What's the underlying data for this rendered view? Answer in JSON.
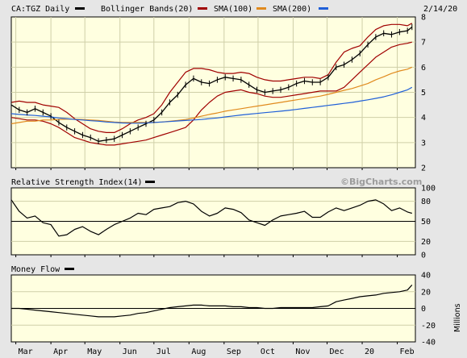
{
  "chart_data": [
    {
      "type": "line",
      "panel": "price",
      "title": "CA:TGZ Daily",
      "date_label": "2/14/20",
      "legend": [
        {
          "name": "",
          "color": "#000000"
        },
        {
          "name": "Bollinger Bands(20)",
          "color": "#a00000"
        },
        {
          "name": "SMA(100)",
          "color": "#e08a1e"
        },
        {
          "name": "SMA(200)",
          "color": "#1f5fd8"
        }
      ],
      "ylim": [
        2,
        8
      ],
      "yticks": [
        "2",
        "3",
        "4",
        "5",
        "6",
        "7",
        "8"
      ],
      "x_months": [
        "Mar",
        "Apr",
        "May",
        "Jun",
        "Jul",
        "Aug",
        "Sep",
        "Oct",
        "Nov",
        "Dec",
        "20",
        "Feb"
      ],
      "series": [
        {
          "name": "CA:TGZ",
          "color": "#000000",
          "x": [
            "2019-02-25",
            "2019-03-04",
            "2019-03-11",
            "2019-03-18",
            "2019-03-25",
            "2019-04-01",
            "2019-04-08",
            "2019-04-15",
            "2019-04-22",
            "2019-04-29",
            "2019-05-06",
            "2019-05-13",
            "2019-05-20",
            "2019-05-27",
            "2019-06-03",
            "2019-06-10",
            "2019-06-17",
            "2019-06-24",
            "2019-07-01",
            "2019-07-08",
            "2019-07-15",
            "2019-07-22",
            "2019-07-29",
            "2019-08-05",
            "2019-08-12",
            "2019-08-19",
            "2019-08-26",
            "2019-09-02",
            "2019-09-09",
            "2019-09-16",
            "2019-09-23",
            "2019-09-30",
            "2019-10-07",
            "2019-10-14",
            "2019-10-21",
            "2019-10-28",
            "2019-11-04",
            "2019-11-11",
            "2019-11-18",
            "2019-11-25",
            "2019-12-02",
            "2019-12-09",
            "2019-12-16",
            "2019-12-23",
            "2019-12-30",
            "2020-01-06",
            "2020-01-13",
            "2020-01-20",
            "2020-01-27",
            "2020-02-03",
            "2020-02-10",
            "2020-02-14"
          ],
          "values": [
            4.5,
            4.3,
            4.2,
            4.35,
            4.2,
            4.05,
            3.8,
            3.6,
            3.45,
            3.3,
            3.2,
            3.05,
            3.1,
            3.15,
            3.3,
            3.45,
            3.6,
            3.75,
            3.9,
            4.2,
            4.6,
            4.9,
            5.3,
            5.55,
            5.4,
            5.35,
            5.5,
            5.6,
            5.55,
            5.5,
            5.3,
            5.1,
            5.0,
            5.05,
            5.1,
            5.2,
            5.35,
            5.45,
            5.4,
            5.4,
            5.6,
            6.0,
            6.1,
            6.3,
            6.55,
            6.9,
            7.2,
            7.35,
            7.3,
            7.4,
            7.45,
            7.6
          ]
        },
        {
          "name": "Bollinger Upper",
          "color": "#a00000",
          "x": [
            "2019-02-25",
            "2019-03-04",
            "2019-03-11",
            "2019-03-18",
            "2019-03-25",
            "2019-04-01",
            "2019-04-08",
            "2019-04-15",
            "2019-04-22",
            "2019-04-29",
            "2019-05-06",
            "2019-05-13",
            "2019-05-20",
            "2019-05-27",
            "2019-06-03",
            "2019-06-10",
            "2019-06-17",
            "2019-06-24",
            "2019-07-01",
            "2019-07-08",
            "2019-07-15",
            "2019-07-22",
            "2019-07-29",
            "2019-08-05",
            "2019-08-12",
            "2019-08-19",
            "2019-08-26",
            "2019-09-02",
            "2019-09-09",
            "2019-09-16",
            "2019-09-23",
            "2019-09-30",
            "2019-10-07",
            "2019-10-14",
            "2019-10-21",
            "2019-10-28",
            "2019-11-04",
            "2019-11-11",
            "2019-11-18",
            "2019-11-25",
            "2019-12-02",
            "2019-12-09",
            "2019-12-16",
            "2019-12-23",
            "2019-12-30",
            "2020-01-06",
            "2020-01-13",
            "2020-01-20",
            "2020-01-27",
            "2020-02-03",
            "2020-02-10",
            "2020-02-14"
          ],
          "values": [
            4.6,
            4.65,
            4.6,
            4.6,
            4.5,
            4.45,
            4.4,
            4.2,
            3.95,
            3.75,
            3.55,
            3.45,
            3.4,
            3.4,
            3.55,
            3.75,
            3.9,
            4.0,
            4.15,
            4.5,
            5.0,
            5.4,
            5.8,
            5.95,
            5.95,
            5.9,
            5.8,
            5.75,
            5.75,
            5.8,
            5.75,
            5.6,
            5.5,
            5.45,
            5.45,
            5.5,
            5.55,
            5.6,
            5.6,
            5.55,
            5.7,
            6.2,
            6.6,
            6.75,
            6.85,
            7.2,
            7.5,
            7.65,
            7.7,
            7.7,
            7.65,
            7.75
          ]
        },
        {
          "name": "Bollinger Lower",
          "color": "#a00000",
          "x": [
            "2019-02-25",
            "2019-03-04",
            "2019-03-11",
            "2019-03-18",
            "2019-03-25",
            "2019-04-01",
            "2019-04-08",
            "2019-04-15",
            "2019-04-22",
            "2019-04-29",
            "2019-05-06",
            "2019-05-13",
            "2019-05-20",
            "2019-05-27",
            "2019-06-03",
            "2019-06-10",
            "2019-06-17",
            "2019-06-24",
            "2019-07-01",
            "2019-07-08",
            "2019-07-15",
            "2019-07-22",
            "2019-07-29",
            "2019-08-05",
            "2019-08-12",
            "2019-08-19",
            "2019-08-26",
            "2019-09-02",
            "2019-09-09",
            "2019-09-16",
            "2019-09-23",
            "2019-09-30",
            "2019-10-07",
            "2019-10-14",
            "2019-10-21",
            "2019-10-28",
            "2019-11-04",
            "2019-11-11",
            "2019-11-18",
            "2019-11-25",
            "2019-12-02",
            "2019-12-09",
            "2019-12-16",
            "2019-12-23",
            "2019-12-30",
            "2020-01-06",
            "2020-01-13",
            "2020-01-20",
            "2020-01-27",
            "2020-02-03",
            "2020-02-10",
            "2020-02-14"
          ],
          "values": [
            4.0,
            3.95,
            3.9,
            3.9,
            3.85,
            3.75,
            3.6,
            3.4,
            3.2,
            3.1,
            3.0,
            2.95,
            2.9,
            2.9,
            2.95,
            3.0,
            3.05,
            3.1,
            3.2,
            3.3,
            3.4,
            3.5,
            3.6,
            3.9,
            4.3,
            4.6,
            4.85,
            5.0,
            5.05,
            5.1,
            5.0,
            4.95,
            4.85,
            4.8,
            4.8,
            4.85,
            4.9,
            4.95,
            5.0,
            5.05,
            5.05,
            5.05,
            5.2,
            5.5,
            5.8,
            6.1,
            6.4,
            6.6,
            6.8,
            6.9,
            6.95,
            7.0
          ]
        },
        {
          "name": "SMA(100)",
          "color": "#e08a1e",
          "x": [
            "2019-02-25",
            "2019-03-04",
            "2019-03-11",
            "2019-03-18",
            "2019-03-25",
            "2019-04-01",
            "2019-04-08",
            "2019-04-15",
            "2019-04-22",
            "2019-04-29",
            "2019-05-06",
            "2019-05-13",
            "2019-05-20",
            "2019-05-27",
            "2019-06-03",
            "2019-06-10",
            "2019-06-17",
            "2019-06-24",
            "2019-07-01",
            "2019-07-08",
            "2019-07-15",
            "2019-07-22",
            "2019-07-29",
            "2019-08-05",
            "2019-08-12",
            "2019-08-19",
            "2019-08-26",
            "2019-09-02",
            "2019-09-09",
            "2019-09-16",
            "2019-09-23",
            "2019-09-30",
            "2019-10-07",
            "2019-10-14",
            "2019-10-21",
            "2019-10-28",
            "2019-11-04",
            "2019-11-11",
            "2019-11-18",
            "2019-11-25",
            "2019-12-02",
            "2019-12-09",
            "2019-12-16",
            "2019-12-23",
            "2019-12-30",
            "2020-01-06",
            "2020-01-13",
            "2020-01-20",
            "2020-01-27",
            "2020-02-03",
            "2020-02-10",
            "2020-02-14"
          ],
          "values": [
            3.75,
            3.8,
            3.85,
            3.85,
            3.9,
            3.9,
            3.92,
            3.93,
            3.93,
            3.92,
            3.9,
            3.88,
            3.85,
            3.82,
            3.8,
            3.8,
            3.8,
            3.8,
            3.8,
            3.82,
            3.85,
            3.88,
            3.92,
            3.98,
            4.05,
            4.12,
            4.18,
            4.25,
            4.3,
            4.35,
            4.4,
            4.45,
            4.5,
            4.55,
            4.6,
            4.65,
            4.7,
            4.75,
            4.8,
            4.85,
            4.92,
            5.0,
            5.08,
            5.15,
            5.25,
            5.35,
            5.5,
            5.62,
            5.75,
            5.85,
            5.92,
            6.0
          ]
        },
        {
          "name": "SMA(200)",
          "color": "#1f5fd8",
          "x": [
            "2019-02-25",
            "2019-03-04",
            "2019-03-11",
            "2019-03-18",
            "2019-03-25",
            "2019-04-01",
            "2019-04-08",
            "2019-04-15",
            "2019-04-22",
            "2019-04-29",
            "2019-05-06",
            "2019-05-13",
            "2019-05-20",
            "2019-05-27",
            "2019-06-03",
            "2019-06-10",
            "2019-06-17",
            "2019-06-24",
            "2019-07-01",
            "2019-07-08",
            "2019-07-15",
            "2019-07-22",
            "2019-07-29",
            "2019-08-05",
            "2019-08-12",
            "2019-08-19",
            "2019-08-26",
            "2019-09-02",
            "2019-09-09",
            "2019-09-16",
            "2019-09-23",
            "2019-09-30",
            "2019-10-07",
            "2019-10-14",
            "2019-10-21",
            "2019-10-28",
            "2019-11-04",
            "2019-11-11",
            "2019-11-18",
            "2019-11-25",
            "2019-12-02",
            "2019-12-09",
            "2019-12-16",
            "2019-12-23",
            "2019-12-30",
            "2020-01-06",
            "2020-01-13",
            "2020-01-20",
            "2020-01-27",
            "2020-02-03",
            "2020-02-10",
            "2020-02-14"
          ],
          "values": [
            4.15,
            4.12,
            4.1,
            4.08,
            4.05,
            4.02,
            3.98,
            3.95,
            3.92,
            3.9,
            3.87,
            3.85,
            3.82,
            3.8,
            3.78,
            3.77,
            3.77,
            3.78,
            3.8,
            3.82,
            3.84,
            3.86,
            3.88,
            3.9,
            3.92,
            3.95,
            3.98,
            4.02,
            4.06,
            4.1,
            4.13,
            4.16,
            4.19,
            4.22,
            4.25,
            4.28,
            4.32,
            4.36,
            4.4,
            4.44,
            4.48,
            4.52,
            4.56,
            4.6,
            4.65,
            4.7,
            4.76,
            4.82,
            4.9,
            5.0,
            5.1,
            5.2
          ]
        }
      ]
    },
    {
      "type": "line",
      "panel": "rsi",
      "title": "Relative Strength Index(14)",
      "watermark": "©BigCharts.com",
      "ylim": [
        0,
        100
      ],
      "yticks": [
        "0",
        "20",
        "50",
        "80",
        "100"
      ],
      "reference_line": 50,
      "series": [
        {
          "name": "RSI(14)",
          "color": "#000000",
          "x": [
            "2019-02-25",
            "2019-03-04",
            "2019-03-11",
            "2019-03-18",
            "2019-03-25",
            "2019-04-01",
            "2019-04-08",
            "2019-04-15",
            "2019-04-22",
            "2019-04-29",
            "2019-05-06",
            "2019-05-13",
            "2019-05-20",
            "2019-05-27",
            "2019-06-03",
            "2019-06-10",
            "2019-06-17",
            "2019-06-24",
            "2019-07-01",
            "2019-07-08",
            "2019-07-15",
            "2019-07-22",
            "2019-07-29",
            "2019-08-05",
            "2019-08-12",
            "2019-08-19",
            "2019-08-26",
            "2019-09-02",
            "2019-09-09",
            "2019-09-16",
            "2019-09-23",
            "2019-09-30",
            "2019-10-07",
            "2019-10-14",
            "2019-10-21",
            "2019-10-28",
            "2019-11-04",
            "2019-11-11",
            "2019-11-18",
            "2019-11-25",
            "2019-12-02",
            "2019-12-09",
            "2019-12-16",
            "2019-12-23",
            "2019-12-30",
            "2020-01-06",
            "2020-01-13",
            "2020-01-20",
            "2020-01-27",
            "2020-02-03",
            "2020-02-10",
            "2020-02-14"
          ],
          "values": [
            82,
            65,
            55,
            58,
            48,
            45,
            28,
            30,
            38,
            42,
            35,
            30,
            38,
            45,
            50,
            55,
            62,
            60,
            68,
            70,
            72,
            78,
            80,
            76,
            65,
            58,
            62,
            70,
            68,
            63,
            52,
            48,
            44,
            52,
            58,
            60,
            62,
            65,
            56,
            56,
            64,
            70,
            66,
            70,
            74,
            80,
            82,
            76,
            66,
            70,
            64,
            62
          ]
        }
      ]
    },
    {
      "type": "line",
      "panel": "money_flow",
      "title": "Money Flow",
      "ylim": [
        -40,
        40
      ],
      "yticks": [
        "-40",
        "-20",
        "0",
        "20",
        "40"
      ],
      "ylabel": "Millions",
      "reference_line": 0,
      "series": [
        {
          "name": "Money Flow",
          "color": "#000000",
          "x": [
            "2019-02-25",
            "2019-03-04",
            "2019-03-11",
            "2019-03-18",
            "2019-03-25",
            "2019-04-01",
            "2019-04-08",
            "2019-04-15",
            "2019-04-22",
            "2019-04-29",
            "2019-05-06",
            "2019-05-13",
            "2019-05-20",
            "2019-05-27",
            "2019-06-03",
            "2019-06-10",
            "2019-06-17",
            "2019-06-24",
            "2019-07-01",
            "2019-07-08",
            "2019-07-15",
            "2019-07-22",
            "2019-07-29",
            "2019-08-05",
            "2019-08-12",
            "2019-08-19",
            "2019-08-26",
            "2019-09-02",
            "2019-09-09",
            "2019-09-16",
            "2019-09-23",
            "2019-09-30",
            "2019-10-07",
            "2019-10-14",
            "2019-10-21",
            "2019-10-28",
            "2019-11-04",
            "2019-11-11",
            "2019-11-18",
            "2019-11-25",
            "2019-12-02",
            "2019-12-09",
            "2019-12-16",
            "2019-12-23",
            "2019-12-30",
            "2020-01-06",
            "2020-01-13",
            "2020-01-20",
            "2020-01-27",
            "2020-02-03",
            "2020-02-10",
            "2020-02-14"
          ],
          "values": [
            0,
            0,
            -1,
            -2,
            -3,
            -4,
            -5,
            -6,
            -7,
            -8,
            -9,
            -10,
            -10,
            -10,
            -9,
            -8,
            -6,
            -5,
            -3,
            -1,
            1,
            2,
            3,
            4,
            4,
            3,
            3,
            3,
            2,
            2,
            1,
            1,
            0,
            0,
            1,
            1,
            1,
            1,
            1,
            2,
            3,
            8,
            10,
            12,
            14,
            15,
            16,
            18,
            19,
            20,
            22,
            28
          ]
        }
      ]
    }
  ]
}
